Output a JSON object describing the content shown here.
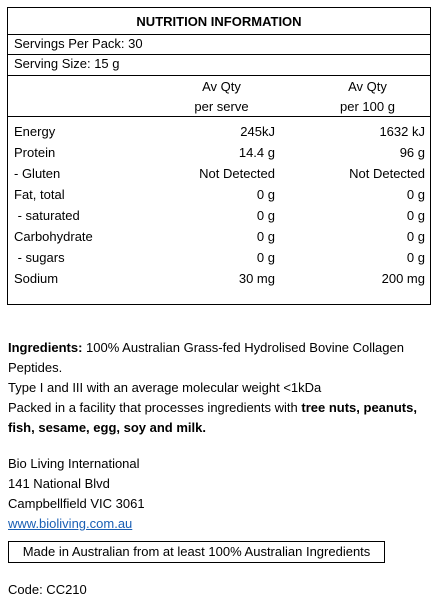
{
  "panel": {
    "title": "NUTRITION INFORMATION",
    "servings_per_pack": "Servings Per Pack: 30",
    "serving_size": "Serving Size: 15 g",
    "col2_header": [
      "Av Qty",
      "per serve"
    ],
    "col3_header": [
      "Av Qty",
      "per 100 g"
    ],
    "rows": [
      {
        "label": "Energy",
        "per_serve": "245kJ",
        "per_100g": "1632 kJ"
      },
      {
        "label": "Protein",
        "per_serve": "14.4 g",
        "per_100g": "96 g"
      },
      {
        "label": "- Gluten",
        "per_serve": "Not Detected",
        "per_100g": "Not Detected"
      },
      {
        "label": "Fat, total",
        "per_serve": "0 g",
        "per_100g": "0 g"
      },
      {
        "label": " - saturated",
        "per_serve": "0 g",
        "per_100g": "0 g"
      },
      {
        "label": "Carbohydrate",
        "per_serve": "0 g",
        "per_100g": "0 g"
      },
      {
        "label": " - sugars",
        "per_serve": "0 g",
        "per_100g": "0 g"
      },
      {
        "label": "Sodium",
        "per_serve": "30 mg",
        "per_100g": "200 mg"
      }
    ]
  },
  "ingredients": {
    "label": "Ingredients:",
    "text": " 100% Australian Grass-fed Hydrolised Bovine Collagen Peptides.",
    "line2": "Type I and III with an average molecular weight <1kDa",
    "allergen_prefix": "Packed in a facility that processes ingredients with ",
    "allergens": "tree nuts, peanuts, fish, sesame, egg, soy and milk."
  },
  "company": {
    "name": "Bio Living International",
    "street": "141 National Blvd",
    "city": "Campbellfield VIC 3061",
    "website": "www.bioliving.com.au"
  },
  "origin_statement": "Made in Australian from at least 100% Australian Ingredients",
  "code": "Code: CC210",
  "colors": {
    "link": "#1a5fb4"
  }
}
